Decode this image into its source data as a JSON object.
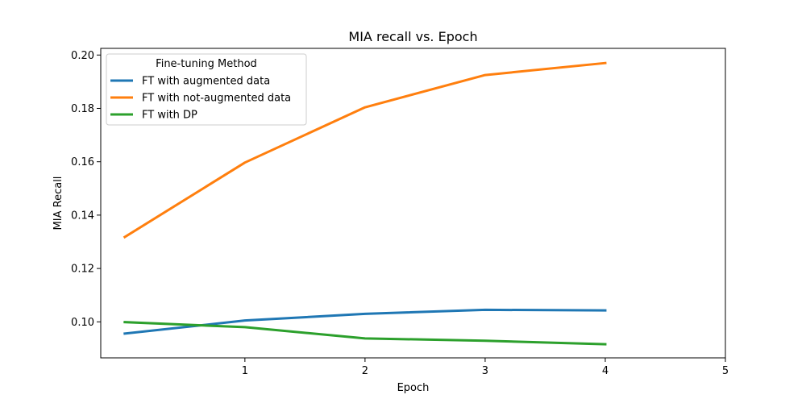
{
  "chart_data": {
    "type": "line",
    "title": "MIA recall  vs. Epoch",
    "xlabel": "Epoch",
    "ylabel": "MIA Recall",
    "xlim": [
      -0.2,
      5.0
    ],
    "ylim": [
      0.0865,
      0.2025
    ],
    "x_ticks": [
      1,
      2,
      3,
      4,
      5
    ],
    "y_ticks": [
      0.1,
      0.12,
      0.14,
      0.16,
      0.18,
      0.2
    ],
    "x_tick_labels": [
      "1",
      "2",
      "3",
      "4",
      "5"
    ],
    "y_tick_labels": [
      "0.10",
      "0.12",
      "0.14",
      "0.16",
      "0.18",
      "0.20"
    ],
    "grid": false,
    "legend": {
      "title": "Fine-tuning Method",
      "placement": "upper-left"
    },
    "x": [
      0,
      1,
      2,
      3,
      4
    ],
    "series": [
      {
        "name": "FT with augmented data",
        "color": "#1f77b4",
        "values": [
          0.0956,
          0.1005,
          0.103,
          0.1045,
          0.1043
        ]
      },
      {
        "name": "FT with not-augmented data",
        "color": "#ff7f0e",
        "values": [
          0.1318,
          0.1597,
          0.1804,
          0.1925,
          0.197
        ]
      },
      {
        "name": "FT with DP",
        "color": "#2ca02c",
        "values": [
          0.0999,
          0.098,
          0.0938,
          0.0929,
          0.0916
        ]
      }
    ]
  }
}
